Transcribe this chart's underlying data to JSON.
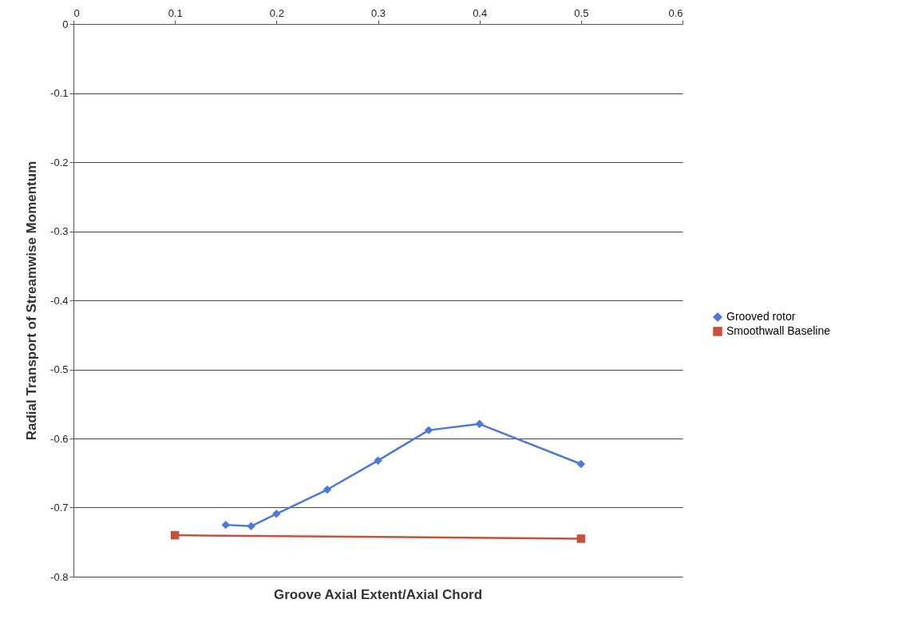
{
  "chart_data": {
    "type": "line",
    "xlabel": "Groove Axial Extent/Axial Chord",
    "ylabel": "Radial Transport of Streamwise Momentum",
    "xlim": [
      0,
      0.6
    ],
    "xticks": [
      0,
      0.1,
      0.2,
      0.3,
      0.4,
      0.5,
      0.6
    ],
    "ylim": [
      -0.8,
      0
    ],
    "yticks": [
      -0.8,
      -0.7,
      -0.6,
      -0.5,
      -0.4,
      -0.3,
      -0.2,
      -0.1,
      0
    ],
    "grid": "y",
    "legend": "right",
    "series": [
      {
        "name": "Grooved rotor",
        "color": "#4f78d6",
        "marker": "diamond",
        "x": [
          0.15,
          0.175,
          0.2,
          0.25,
          0.3,
          0.35,
          0.4,
          0.5
        ],
        "values": [
          -0.725,
          -0.727,
          -0.709,
          -0.674,
          -0.632,
          -0.588,
          -0.579,
          -0.637
        ]
      },
      {
        "name": "Smoothwall Baseline",
        "color": "#c8503c",
        "marker": "square",
        "x": [
          0.1,
          0.5
        ],
        "values": [
          -0.74,
          -0.745
        ]
      }
    ]
  }
}
